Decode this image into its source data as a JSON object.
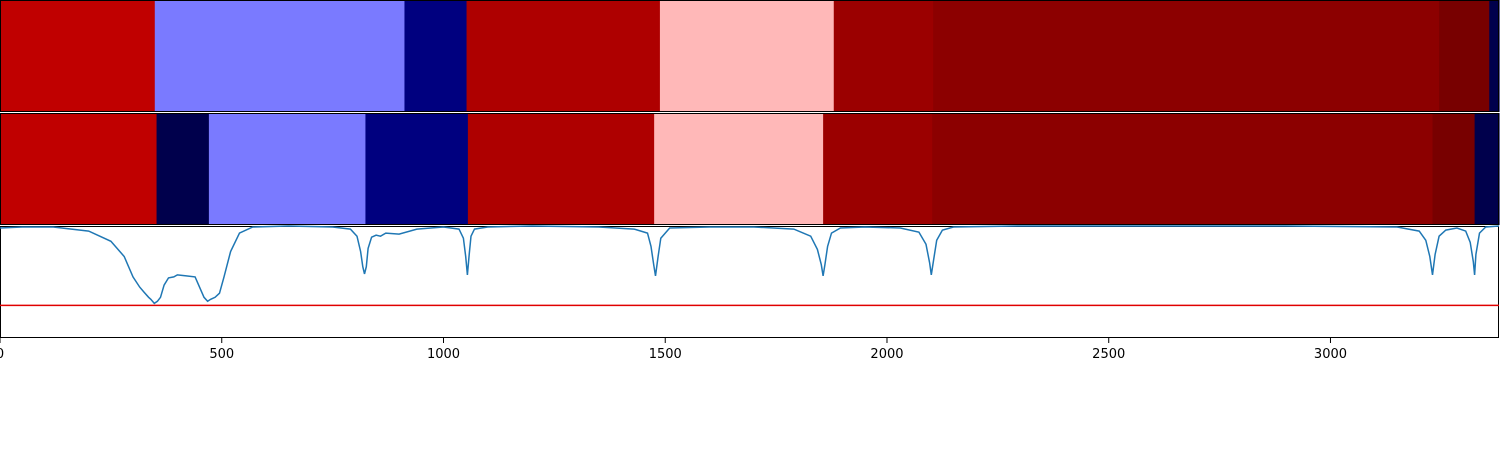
{
  "chart_data": [
    {
      "type": "heatmap",
      "panel": "segmentation-1",
      "x_range": [
        0,
        3380
      ],
      "segments": [
        {
          "start": 0,
          "end": 349,
          "color": "#c00000"
        },
        {
          "start": 349,
          "end": 912,
          "color": "#7a7aff"
        },
        {
          "start": 912,
          "end": 1052,
          "color": "#00007f"
        },
        {
          "start": 1052,
          "end": 1488,
          "color": "#ae0000"
        },
        {
          "start": 1488,
          "end": 1880,
          "color": "#ffb8b8"
        },
        {
          "start": 1880,
          "end": 2104,
          "color": "#9b0000"
        },
        {
          "start": 2104,
          "end": 3245,
          "color": "#8c0000"
        },
        {
          "start": 3245,
          "end": 3358,
          "color": "#780000"
        },
        {
          "start": 3358,
          "end": 3380,
          "color": "#00004c"
        }
      ]
    },
    {
      "type": "heatmap",
      "panel": "segmentation-2",
      "x_range": [
        0,
        3380
      ],
      "segments": [
        {
          "start": 0,
          "end": 353,
          "color": "#c00000"
        },
        {
          "start": 353,
          "end": 471,
          "color": "#00004c"
        },
        {
          "start": 471,
          "end": 824,
          "color": "#7a7aff"
        },
        {
          "start": 824,
          "end": 1055,
          "color": "#00007f"
        },
        {
          "start": 1055,
          "end": 1475,
          "color": "#ae0000"
        },
        {
          "start": 1475,
          "end": 1856,
          "color": "#ffb8b8"
        },
        {
          "start": 1856,
          "end": 2102,
          "color": "#9b0000"
        },
        {
          "start": 2102,
          "end": 3230,
          "color": "#8c0000"
        },
        {
          "start": 3230,
          "end": 3325,
          "color": "#780000"
        },
        {
          "start": 3325,
          "end": 3380,
          "color": "#00004c"
        }
      ]
    },
    {
      "type": "line",
      "panel": "score-curve",
      "xlim": [
        0,
        3380
      ],
      "ylim": [
        -0.1,
        1.0
      ],
      "xticks": [
        0,
        500,
        1000,
        1500,
        2000,
        2500,
        3000
      ],
      "xtick_labels": [
        "0",
        "500",
        "1000",
        "1500",
        "2000",
        "2500",
        "3000"
      ],
      "line_color": "#1f77b4",
      "threshold": {
        "y": 0.22,
        "color": "#e00000"
      },
      "series": [
        {
          "x": [
            0,
            50,
            120,
            200,
            250,
            280,
            300,
            315,
            325,
            335,
            340,
            348,
            355,
            362,
            370,
            380,
            392,
            400,
            420,
            440,
            460,
            468,
            475,
            485,
            495,
            505,
            520,
            540,
            570,
            650,
            750,
            790,
            805,
            813,
            818,
            822,
            826,
            830,
            838,
            848,
            858,
            870,
            900,
            940,
            1000,
            1035,
            1045,
            1050,
            1054,
            1058,
            1062,
            1070,
            1100,
            1200,
            1350,
            1430,
            1460,
            1468,
            1474,
            1478,
            1484,
            1490,
            1510,
            1600,
            1700,
            1790,
            1828,
            1843,
            1852,
            1856,
            1860,
            1866,
            1875,
            1895,
            1950,
            2030,
            2072,
            2088,
            2096,
            2100,
            2105,
            2112,
            2125,
            2150,
            2300,
            2600,
            2900,
            3150,
            3200,
            3215,
            3224,
            3230,
            3236,
            3245,
            3260,
            3285,
            3305,
            3315,
            3322,
            3325,
            3328,
            3336,
            3350,
            3380
          ],
          "y": [
            0.98,
            0.99,
            0.99,
            0.95,
            0.85,
            0.7,
            0.5,
            0.4,
            0.35,
            0.3,
            0.28,
            0.24,
            0.26,
            0.3,
            0.42,
            0.49,
            0.5,
            0.52,
            0.51,
            0.5,
            0.3,
            0.26,
            0.28,
            0.3,
            0.34,
            0.5,
            0.75,
            0.93,
            0.99,
            1.0,
            0.99,
            0.97,
            0.9,
            0.75,
            0.6,
            0.53,
            0.6,
            0.78,
            0.89,
            0.91,
            0.9,
            0.93,
            0.92,
            0.97,
            0.99,
            0.97,
            0.88,
            0.7,
            0.52,
            0.72,
            0.9,
            0.97,
            0.99,
            1.0,
            0.99,
            0.97,
            0.93,
            0.8,
            0.62,
            0.51,
            0.7,
            0.88,
            0.98,
            0.99,
            0.99,
            0.97,
            0.9,
            0.77,
            0.62,
            0.51,
            0.62,
            0.8,
            0.93,
            0.98,
            0.99,
            0.98,
            0.94,
            0.82,
            0.64,
            0.52,
            0.66,
            0.86,
            0.96,
            0.99,
            1.0,
            1.0,
            1.0,
            0.99,
            0.95,
            0.86,
            0.7,
            0.52,
            0.72,
            0.9,
            0.96,
            0.98,
            0.95,
            0.84,
            0.65,
            0.52,
            0.72,
            0.93,
            0.99,
            1.0
          ]
        }
      ]
    }
  ]
}
